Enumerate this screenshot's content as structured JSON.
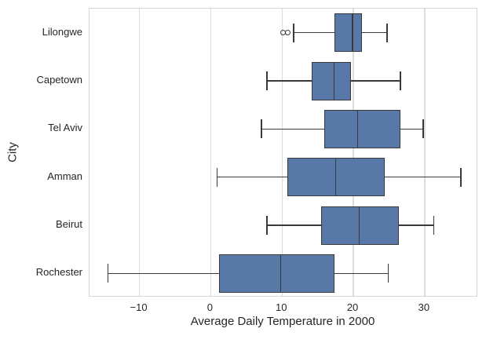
{
  "chart_data": {
    "type": "boxplot",
    "orientation": "horizontal",
    "xlabel": "Average Daily Temperature in 2000",
    "ylabel": "City",
    "categories": [
      "Lilongwe",
      "Capetown",
      "Tel Aviv",
      "Amman",
      "Beirut",
      "Rochester"
    ],
    "series": [
      {
        "name": "Lilongwe",
        "whisker_low": 11.6,
        "q1": 17.4,
        "median": 19.9,
        "q3": 21.2,
        "whisker_high": 24.7,
        "outliers": [
          10.1,
          10.8
        ]
      },
      {
        "name": "Capetown",
        "whisker_low": 7.9,
        "q1": 14.2,
        "median": 17.3,
        "q3": 19.7,
        "whisker_high": 26.6,
        "outliers": []
      },
      {
        "name": "Tel Aviv",
        "whisker_low": 7.1,
        "q1": 15.9,
        "median": 20.6,
        "q3": 26.6,
        "whisker_high": 29.8,
        "outliers": []
      },
      {
        "name": "Amman",
        "whisker_low": 0.9,
        "q1": 10.7,
        "median": 17.5,
        "q3": 24.4,
        "whisker_high": 35.1,
        "outliers": []
      },
      {
        "name": "Beirut",
        "whisker_low": 7.9,
        "q1": 15.5,
        "median": 20.8,
        "q3": 26.4,
        "whisker_high": 31.3,
        "outliers": []
      },
      {
        "name": "Rochester",
        "whisker_low": -14.4,
        "q1": 1.2,
        "median": 9.8,
        "q3": 17.4,
        "whisker_high": 24.9,
        "outliers": []
      }
    ],
    "xlim": [
      -17,
      37.5
    ],
    "xticks": [
      -10,
      0,
      10,
      20,
      30
    ],
    "grid": "vertical",
    "legend": "none",
    "colors": {
      "box_fill": "#5878a8",
      "box_edge": "#3a3a3a",
      "whisker": "#3a3a3a",
      "outlier_edge": "#3a3a3a",
      "gridline": "#dcdcdc",
      "spine": "#d5d5d5",
      "text": "#262626"
    }
  }
}
